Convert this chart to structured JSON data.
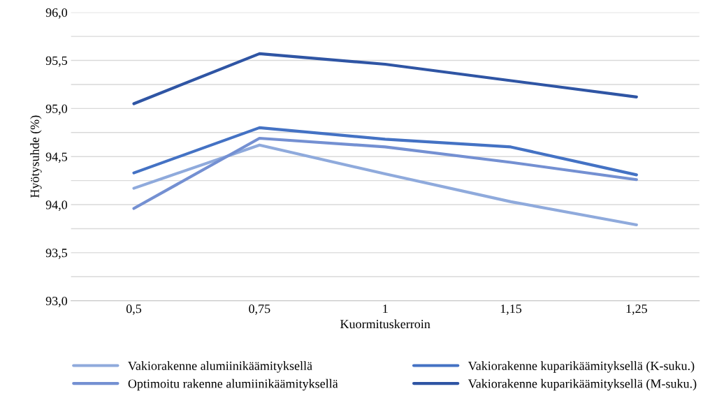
{
  "chart_data": {
    "type": "line",
    "xlabel": "Kuormituskerroin",
    "ylabel": "Hyötysuhde (%)",
    "categories": [
      "0,5",
      "0,75",
      "1",
      "1,15",
      "1,25"
    ],
    "series": [
      {
        "name": "Vakiorakenne alumiinikäämityksellä",
        "color": "#8faadc",
        "values": [
          94.17,
          94.62,
          94.32,
          94.03,
          93.79
        ]
      },
      {
        "name": "Optimoitu rakenne alumiinikäämityksellä",
        "color": "#7490d2",
        "values": [
          93.96,
          94.69,
          94.6,
          94.44,
          94.26
        ]
      },
      {
        "name": "Vakiorakenne kuparikäämityksellä (K-suku.)",
        "color": "#4472c4",
        "values": [
          94.33,
          94.8,
          94.68,
          94.6,
          94.31
        ]
      },
      {
        "name": "Vakiorakenne kuparikäämityksellä (M-suku.)",
        "color": "#2f55a4",
        "values": [
          95.05,
          95.57,
          95.46,
          95.29,
          95.12
        ]
      }
    ],
    "ylim": [
      93.0,
      96.0
    ],
    "yticks": [
      {
        "value": 93.0,
        "label": "93,0"
      },
      {
        "value": 93.25,
        "label": null
      },
      {
        "value": 93.5,
        "label": "93,5"
      },
      {
        "value": 93.75,
        "label": null
      },
      {
        "value": 94.0,
        "label": "94,0"
      },
      {
        "value": 94.25,
        "label": null
      },
      {
        "value": 94.5,
        "label": "94,5"
      },
      {
        "value": 94.75,
        "label": null
      },
      {
        "value": 95.0,
        "label": "95,0"
      },
      {
        "value": 95.25,
        "label": null
      },
      {
        "value": 95.5,
        "label": "95,5"
      },
      {
        "value": 95.75,
        "label": null
      },
      {
        "value": 96.0,
        "label": "96,0"
      }
    ],
    "grid": "y",
    "legend": "bottom",
    "marker": "none",
    "line_style": "solid"
  }
}
